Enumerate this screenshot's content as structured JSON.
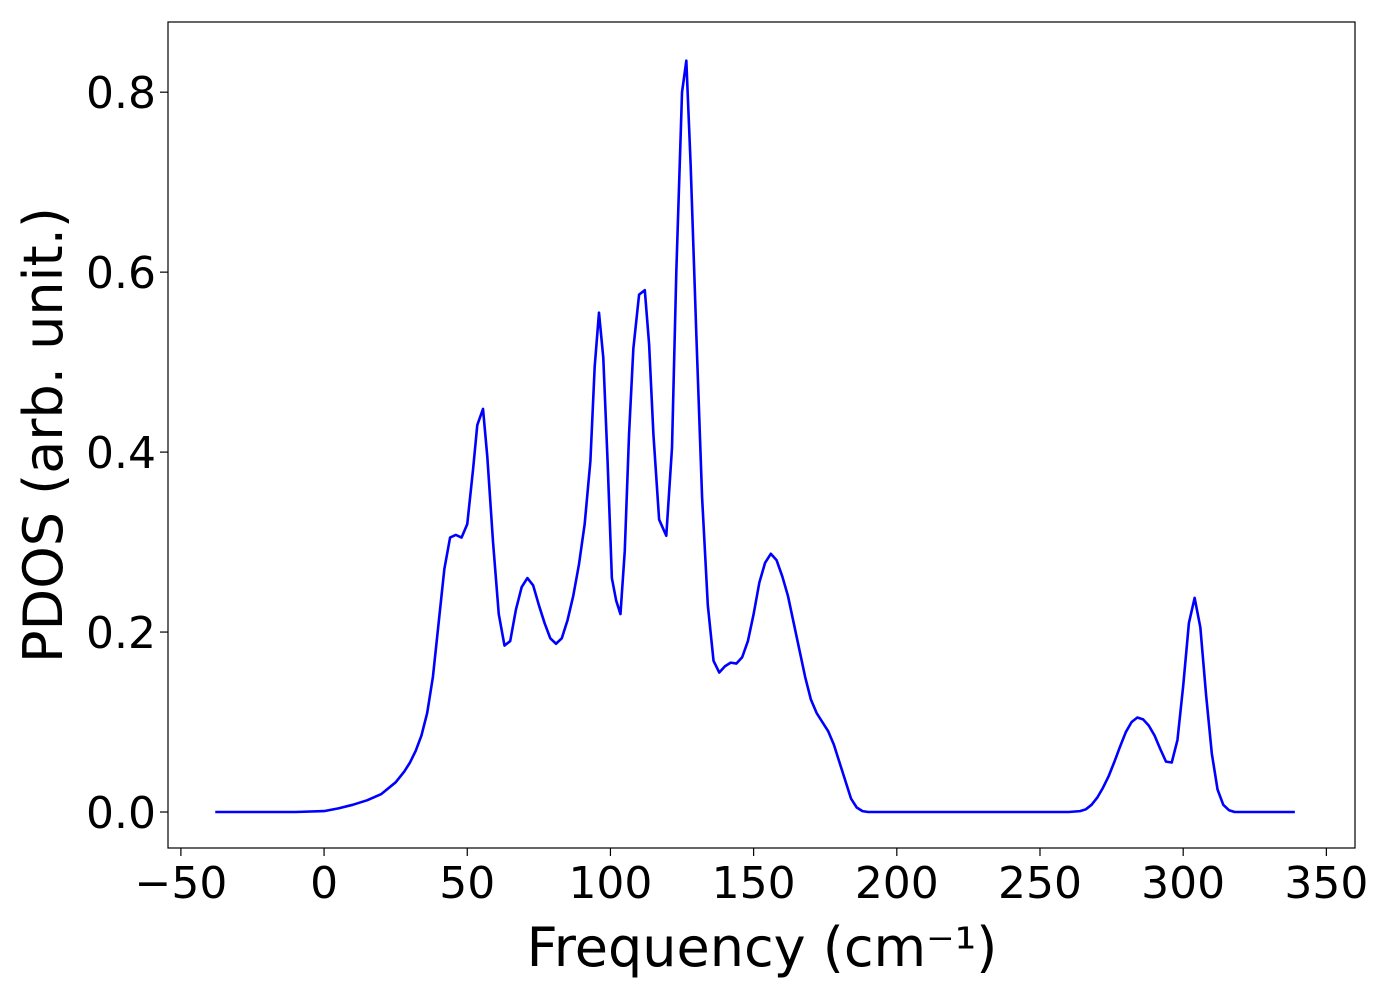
{
  "chart_data": {
    "type": "line",
    "xlabel": "Frequency (cm⁻¹)",
    "ylabel": "PDOS (arb. unit.)",
    "xlim": [
      -54.5,
      360
    ],
    "ylim": [
      -0.04,
      0.878
    ],
    "xticks": [
      {
        "value": -50,
        "label": "−50"
      },
      0,
      50,
      100,
      150,
      200,
      250,
      300,
      350
    ],
    "yticks": [
      {
        "value": 0,
        "label": "0.0"
      },
      0.2,
      0.4,
      0.6,
      0.8
    ],
    "grid": false,
    "series": [
      {
        "color": "#0000ff",
        "x": [
          -38,
          -10,
          0,
          5,
          10,
          15,
          20,
          25,
          28,
          30,
          32,
          34,
          36,
          38,
          40,
          42,
          44,
          46,
          48,
          50,
          52,
          53.5,
          55.5,
          57,
          59,
          61,
          63,
          65,
          67,
          69,
          71,
          73,
          75,
          77,
          79,
          81,
          83,
          85,
          87,
          89,
          91,
          93,
          94.5,
          96,
          97.5,
          99,
          100.5,
          102,
          103.5,
          105,
          106.5,
          108,
          110,
          112,
          113.5,
          115,
          117,
          119.5,
          121.5,
          123,
          125,
          126.5,
          128,
          130,
          132,
          134,
          136,
          138,
          140,
          142,
          144,
          146,
          148,
          150,
          152,
          154,
          156,
          158,
          160,
          162,
          164,
          166,
          168,
          170,
          172,
          174,
          176,
          178,
          180,
          182,
          184,
          186,
          188,
          190,
          260,
          264,
          266,
          268,
          270,
          272,
          274,
          276,
          278,
          280,
          282,
          284,
          286,
          288,
          290,
          292,
          294,
          296,
          298,
          300,
          302,
          304,
          306,
          308,
          310,
          312,
          314,
          316,
          318,
          339
        ],
        "values": [
          0,
          0,
          0.001,
          0.004,
          0.008,
          0.013,
          0.02,
          0.033,
          0.045,
          0.055,
          0.068,
          0.085,
          0.11,
          0.15,
          0.21,
          0.27,
          0.305,
          0.308,
          0.305,
          0.32,
          0.38,
          0.43,
          0.448,
          0.395,
          0.3,
          0.22,
          0.185,
          0.19,
          0.225,
          0.25,
          0.26,
          0.252,
          0.23,
          0.21,
          0.193,
          0.187,
          0.193,
          0.213,
          0.24,
          0.275,
          0.32,
          0.39,
          0.495,
          0.555,
          0.505,
          0.39,
          0.26,
          0.235,
          0.22,
          0.29,
          0.42,
          0.515,
          0.575,
          0.58,
          0.52,
          0.42,
          0.325,
          0.307,
          0.405,
          0.6,
          0.8,
          0.835,
          0.72,
          0.53,
          0.35,
          0.23,
          0.168,
          0.155,
          0.162,
          0.166,
          0.165,
          0.172,
          0.19,
          0.22,
          0.255,
          0.277,
          0.287,
          0.28,
          0.262,
          0.24,
          0.21,
          0.18,
          0.15,
          0.125,
          0.11,
          0.1,
          0.09,
          0.075,
          0.055,
          0.035,
          0.015,
          0.005,
          0.001,
          0,
          0,
          0.001,
          0.003,
          0.008,
          0.016,
          0.027,
          0.04,
          0.056,
          0.073,
          0.089,
          0.1,
          0.105,
          0.103,
          0.096,
          0.085,
          0.07,
          0.056,
          0.055,
          0.08,
          0.14,
          0.21,
          0.238,
          0.205,
          0.13,
          0.065,
          0.025,
          0.008,
          0.002,
          0,
          0
        ]
      }
    ]
  }
}
